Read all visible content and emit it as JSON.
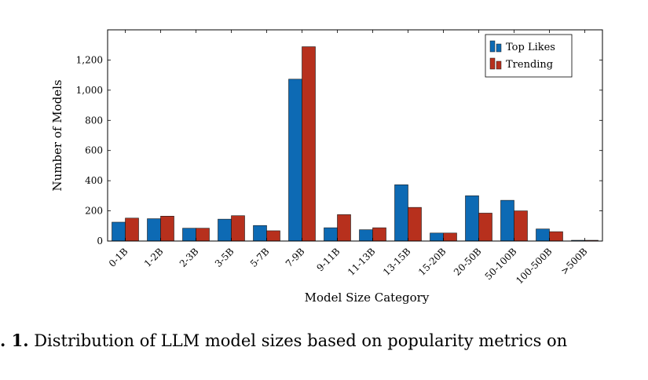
{
  "chart_data": {
    "type": "bar",
    "categories": [
      "0-1B",
      "1-2B",
      "2-3B",
      "3-5B",
      "5-7B",
      "7-9B",
      "9-11B",
      "11-13B",
      "13-15B",
      "15-20B",
      "20-50B",
      "50-100B",
      "100-500B",
      ">500B"
    ],
    "series": [
      {
        "name": "Top Likes",
        "color": "#0d6ab4",
        "values": [
          125,
          148,
          85,
          145,
          103,
          1073,
          88,
          75,
          373,
          53,
          300,
          270,
          80,
          5
        ]
      },
      {
        "name": "Trending",
        "color": "#b7301d",
        "values": [
          152,
          165,
          85,
          168,
          68,
          1288,
          175,
          88,
          223,
          53,
          185,
          200,
          62,
          5
        ]
      }
    ],
    "xlabel": "Model Size Category",
    "ylabel": "Number of Models",
    "ylim": [
      0,
      1400
    ],
    "yticks": [
      0,
      200,
      400,
      600,
      800,
      1000,
      1200
    ],
    "ytick_labels": [
      "0",
      "200",
      "400",
      "600",
      "800",
      "1,000",
      "1,200"
    ],
    "grid": false,
    "legend_position": "top-right"
  },
  "caption": {
    "label": ". 1.",
    "text": " Distribution of LLM model sizes based on popularity metrics on"
  }
}
